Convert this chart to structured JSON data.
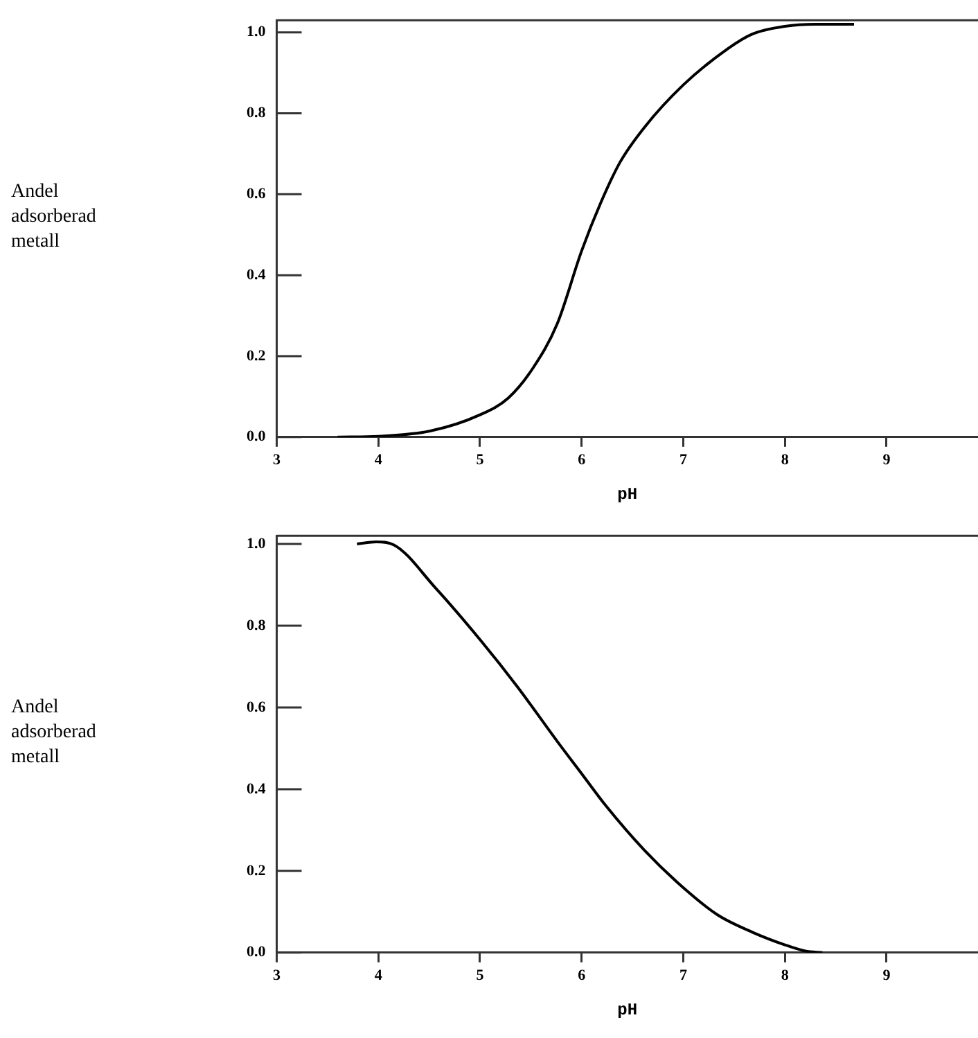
{
  "chart_data": [
    {
      "type": "line",
      "xlabel": "pH",
      "ylabel": "Andel adsorberad metall",
      "xlim": [
        3,
        9.9
      ],
      "xticks": [
        3,
        4,
        5,
        6,
        7,
        8,
        9
      ],
      "ylim": [
        0,
        1.03
      ],
      "yticks": [
        {
          "value": 0,
          "label": "0.0"
        },
        {
          "value": 0.2,
          "label": "0.2"
        },
        {
          "value": 0.4,
          "label": "0.4"
        },
        {
          "value": 0.6,
          "label": "0.6"
        },
        {
          "value": 0.8,
          "label": "0.8"
        },
        {
          "value": 1.0,
          "label": "1.0"
        }
      ],
      "grid": false,
      "legend": false,
      "marker": "none",
      "line_style": "solid",
      "series": [
        {
          "color": "#000000",
          "x": [
            3.6,
            4.0,
            4.51,
            5.0,
            5.28,
            5.52,
            5.76,
            6.0,
            6.19,
            6.38,
            6.62,
            7.0,
            7.44,
            7.68,
            8.0,
            8.3,
            8.68
          ],
          "values": [
            0,
            0.002,
            0.015,
            0.055,
            0.097,
            0.17,
            0.28,
            0.46,
            0.58,
            0.68,
            0.766,
            0.87,
            0.96,
            0.996,
            1.015,
            1.02,
            1.02
          ]
        }
      ]
    },
    {
      "type": "line",
      "xlabel": "pH",
      "ylabel": "Andel adsorberad metall",
      "xlim": [
        3,
        9.9
      ],
      "xticks": [
        3,
        4,
        5,
        6,
        7,
        8,
        9
      ],
      "ylim": [
        0,
        1.02
      ],
      "yticks": [
        {
          "value": 0,
          "label": "0.0"
        },
        {
          "value": 0.2,
          "label": "0.2"
        },
        {
          "value": 0.4,
          "label": "0.4"
        },
        {
          "value": 0.6,
          "label": "0.6"
        },
        {
          "value": 0.8,
          "label": "0.8"
        },
        {
          "value": 1.0,
          "label": "1.0"
        }
      ],
      "grid": false,
      "legend": false,
      "marker": "none",
      "line_style": "solid",
      "series": [
        {
          "color": "#000000",
          "x": [
            3.79,
            3.98,
            4.15,
            4.56,
            5.0,
            5.37,
            5.76,
            6.0,
            6.24,
            6.62,
            7.0,
            7.34,
            7.68,
            8.0,
            8.2,
            8.37
          ],
          "values": [
            1.0,
            1.005,
            0.998,
            0.893,
            0.766,
            0.65,
            0.517,
            0.438,
            0.359,
            0.25,
            0.159,
            0.092,
            0.05,
            0.019,
            0.004,
            0
          ]
        }
      ]
    }
  ]
}
